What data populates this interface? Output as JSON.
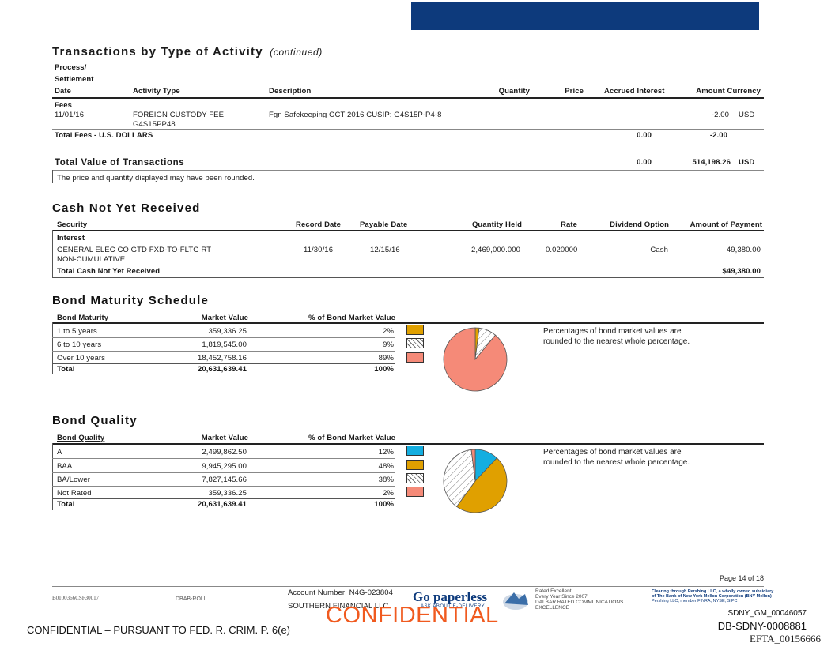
{
  "header": {
    "title": "Transactions by Type of Activity",
    "title_suffix": "(continued)"
  },
  "transactions": {
    "columns": {
      "date_line1": "Process/",
      "date_line2": "Settlement",
      "date_line3": "Date",
      "activity": "Activity Type",
      "description": "Description",
      "quantity": "Quantity",
      "price": "Price",
      "accrued": "Accrued Interest",
      "amount": "Amount Currency"
    },
    "group_label": "Fees",
    "row": {
      "date": "11/01/16",
      "activity_line1": "FOREIGN CUSTODY FEE",
      "activity_line2": "G4S15PP48",
      "description": "Fgn Safekeeping OCT 2016 CUSIP: G4S15P-P4-8",
      "amount": "-2.00",
      "currency": "USD"
    },
    "total_fees_label": "Total Fees - U.S. DOLLARS",
    "total_fees_accrued": "0.00",
    "total_fees_amount": "-2.00",
    "total_value_label": "Total Value of Transactions",
    "total_value_accrued": "0.00",
    "total_value_amount": "514,198.26",
    "total_value_currency": "USD",
    "note": "The price and quantity displayed may have been rounded."
  },
  "cash": {
    "title": "Cash Not Yet Received",
    "columns": {
      "security": "Security",
      "record_date": "Record Date",
      "payable_date": "Payable Date",
      "quantity_held": "Quantity Held",
      "rate": "Rate",
      "dividend_option": "Dividend Option",
      "amount_payment": "Amount of Payment"
    },
    "group_label": "Interest",
    "row": {
      "security_line1": "GENERAL ELEC CO GTD FXD-TO-FLTG RT",
      "security_line2": "NON-CUMULATIVE",
      "record_date": "11/30/16",
      "payable_date": "12/15/16",
      "quantity_held": "2,469,000.000",
      "rate": "0.020000",
      "dividend_option": "Cash",
      "amount": "49,380.00"
    },
    "total_label": "Total Cash Not Yet Received",
    "total_amount": "$49,380.00"
  },
  "maturity": {
    "title": "Bond Maturity Schedule",
    "columns": {
      "label": "Bond Maturity",
      "market_value": "Market Value",
      "pct": "% of Bond Market Value"
    },
    "rows": [
      {
        "label": "1 to 5 years",
        "value": "359,336.25",
        "pct": "2%",
        "color": "#e0a000"
      },
      {
        "label": "6 to 10 years",
        "value": "1,819,545.00",
        "pct": "9%",
        "color": "hatch"
      },
      {
        "label": "Over 10 years",
        "value": "18,452,758.16",
        "pct": "89%",
        "color": "#f58a78"
      }
    ],
    "total_label": "Total",
    "total_value": "20,631,639.41",
    "total_pct": "100%",
    "note_line1": "Percentages of bond market values are",
    "note_line2": "rounded to the nearest whole percentage."
  },
  "quality": {
    "title": "Bond Quality",
    "columns": {
      "label": "Bond Quality",
      "market_value": "Market Value",
      "pct": "% of Bond Market Value"
    },
    "rows": [
      {
        "label": "A",
        "value": "2,499,862.50",
        "pct": "12%",
        "color": "#14aee0"
      },
      {
        "label": "BAA",
        "value": "9,945,295.00",
        "pct": "48%",
        "color": "#e0a000"
      },
      {
        "label": "BA/Lower",
        "value": "7,827,145.66",
        "pct": "38%",
        "color": "hatch"
      },
      {
        "label": "Not Rated",
        "value": "359,336.25",
        "pct": "2%",
        "color": "#f58a78"
      }
    ],
    "total_label": "Total",
    "total_value": "20,631,639.41",
    "total_pct": "100%",
    "note_line1": "Percentages of bond market values are",
    "note_line2": "rounded to the nearest whole percentage."
  },
  "chart_data": [
    {
      "type": "pie",
      "title": "",
      "categories": [
        "1 to 5 years",
        "6 to 10 years",
        "Over 10 years"
      ],
      "values": [
        2,
        9,
        89
      ],
      "colors": [
        "#e0a000",
        "hatch",
        "#f58a78"
      ]
    },
    {
      "type": "pie",
      "title": "",
      "categories": [
        "A",
        "BAA",
        "BA/Lower",
        "Not Rated"
      ],
      "values": [
        12,
        48,
        38,
        2
      ],
      "colors": [
        "#14aee0",
        "#e0a000",
        "hatch",
        "#f58a78"
      ]
    }
  ],
  "footer": {
    "page": "Page 14 of 18",
    "code_left": "B0100366CSF30017",
    "code_mid": "DBAB-ROLL",
    "account": "Account Number: N4G-023804",
    "firm": "SOUTHERN FINANCIAL LLC",
    "go_paperless": "Go paperless",
    "go_paperless_sub": "ASK ABOUT E-DELIVERY",
    "dalbar_1": "Rated Excellent",
    "dalbar_2": "Every Year Since 2007",
    "dalbar_3": "DALBAR RATED COMMUNICATIONS",
    "dalbar_4": "EXCELLENCE",
    "clearing_1": "Clearing through Pershing LLC, a wholly owned subsidiary",
    "clearing_2": "of The Bank of New York Mellon Corporation (BNY Mellon)",
    "clearing_3": "Pershing LLC, member FINRA, NYSE, SIPC",
    "confidential_stamp": "CONFIDENTIAL",
    "confidential_left": "CONFIDENTIAL – PURSUANT TO FED. R. CRIM. P. 6(e)",
    "bates_1": "SDNY_GM_00046057",
    "bates_2": "DB-SDNY-0008881",
    "bates_3": "EFTA_00156666"
  }
}
